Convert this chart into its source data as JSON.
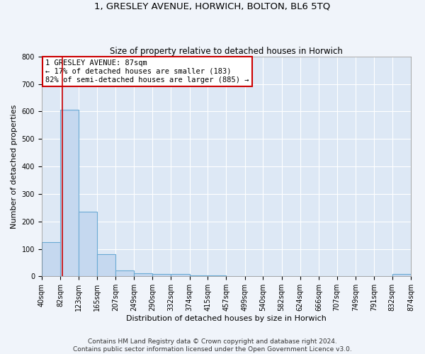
{
  "title": "1, GRESLEY AVENUE, HORWICH, BOLTON, BL6 5TQ",
  "subtitle": "Size of property relative to detached houses in Horwich",
  "xlabel": "Distribution of detached houses by size in Horwich",
  "ylabel": "Number of detached properties",
  "bar_color": "#c5d8ef",
  "bar_edge_color": "#6aaad4",
  "background_color": "#dde8f5",
  "grid_color": "#ffffff",
  "fig_background": "#f0f4fa",
  "bin_edges": [
    40,
    82,
    123,
    165,
    207,
    249,
    290,
    332,
    374,
    415,
    457,
    499,
    540,
    582,
    624,
    666,
    707,
    749,
    791,
    832,
    874
  ],
  "bar_heights": [
    125,
    605,
    235,
    80,
    22,
    12,
    8,
    8,
    4,
    3,
    2,
    2,
    1,
    1,
    1,
    1,
    1,
    1,
    0,
    8
  ],
  "property_size": 87,
  "red_line_color": "#cc0000",
  "annotation_line1": "1 GRESLEY AVENUE: 87sqm",
  "annotation_line2": "← 17% of detached houses are smaller (183)",
  "annotation_line3": "82% of semi-detached houses are larger (885) →",
  "annotation_box_color": "#ffffff",
  "annotation_border_color": "#cc0000",
  "ylim": [
    0,
    800
  ],
  "yticks": [
    0,
    100,
    200,
    300,
    400,
    500,
    600,
    700,
    800
  ],
  "footer_text": "Contains HM Land Registry data © Crown copyright and database right 2024.\nContains public sector information licensed under the Open Government Licence v3.0.",
  "title_fontsize": 9.5,
  "subtitle_fontsize": 8.5,
  "axis_label_fontsize": 8,
  "tick_fontsize": 7,
  "annotation_fontsize": 7.5,
  "footer_fontsize": 6.5
}
